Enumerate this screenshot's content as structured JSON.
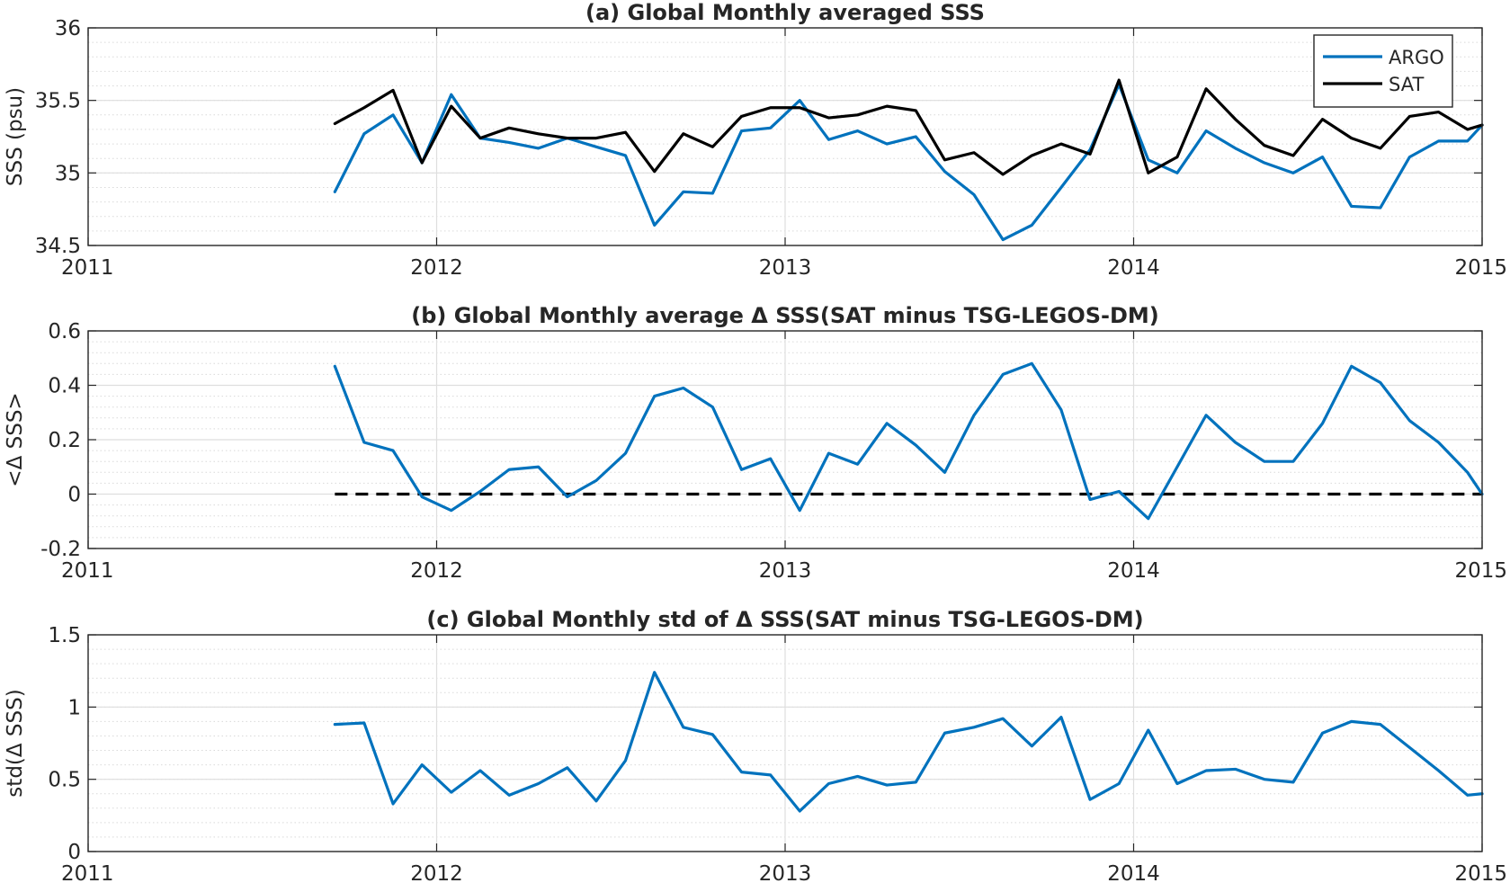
{
  "chart_data": [
    {
      "id": "a",
      "type": "line",
      "title": "(a) Global Monthly averaged SSS",
      "xlabel": "",
      "ylabel": "SSS (psu)",
      "xlim": [
        2011,
        2015
      ],
      "ylim": [
        34.5,
        36
      ],
      "x_ticks": [
        2011,
        2012,
        2013,
        2014,
        2015
      ],
      "x_tick_labels": [
        "2011",
        "2012",
        "2013",
        "2014",
        "2015"
      ],
      "y_ticks": [
        34.5,
        35,
        35.5,
        36
      ],
      "y_tick_labels": [
        "34.5",
        "35",
        "35.5",
        "36"
      ],
      "y_minor_step": 0.1,
      "grid": true,
      "legend": "top-right",
      "series": [
        {
          "name": "ARGO",
          "color": "#0072BD",
          "x": [
            2011.708,
            2011.792,
            2011.875,
            2011.958,
            2012.042,
            2012.125,
            2012.208,
            2012.292,
            2012.375,
            2012.458,
            2012.542,
            2012.625,
            2012.708,
            2012.792,
            2012.875,
            2012.958,
            2013.042,
            2013.125,
            2013.208,
            2013.292,
            2013.375,
            2013.458,
            2013.542,
            2013.625,
            2013.708,
            2013.792,
            2013.875,
            2013.958,
            2014.042,
            2014.125,
            2014.208,
            2014.292,
            2014.375,
            2014.458,
            2014.542,
            2014.625,
            2014.708,
            2014.792,
            2014.875,
            2014.958,
            2015.0
          ],
          "y": [
            34.87,
            35.27,
            35.4,
            35.07,
            35.54,
            35.24,
            35.21,
            35.17,
            35.24,
            35.18,
            35.12,
            34.64,
            34.87,
            34.86,
            35.29,
            35.31,
            35.5,
            35.23,
            35.29,
            35.2,
            35.25,
            35.01,
            34.85,
            34.54,
            34.64,
            34.9,
            35.16,
            35.61,
            35.09,
            35.0,
            35.29,
            35.17,
            35.07,
            35.0,
            35.11,
            34.77,
            34.76,
            35.11,
            35.22,
            35.22,
            35.33
          ]
        },
        {
          "name": "SAT",
          "color": "#000000",
          "x": [
            2011.708,
            2011.792,
            2011.875,
            2011.958,
            2012.042,
            2012.125,
            2012.208,
            2012.292,
            2012.375,
            2012.458,
            2012.542,
            2012.625,
            2012.708,
            2012.792,
            2012.875,
            2012.958,
            2013.042,
            2013.125,
            2013.208,
            2013.292,
            2013.375,
            2013.458,
            2013.542,
            2013.625,
            2013.708,
            2013.792,
            2013.875,
            2013.958,
            2014.042,
            2014.125,
            2014.208,
            2014.292,
            2014.375,
            2014.458,
            2014.542,
            2014.625,
            2014.708,
            2014.792,
            2014.875,
            2014.958,
            2015.0
          ],
          "y": [
            35.34,
            35.45,
            35.57,
            35.07,
            35.46,
            35.24,
            35.31,
            35.27,
            35.24,
            35.24,
            35.28,
            35.01,
            35.27,
            35.18,
            35.39,
            35.45,
            35.45,
            35.38,
            35.4,
            35.46,
            35.43,
            35.09,
            35.14,
            34.99,
            35.12,
            35.2,
            35.13,
            35.64,
            35.0,
            35.11,
            35.58,
            35.37,
            35.19,
            35.12,
            35.37,
            35.24,
            35.17,
            35.39,
            35.42,
            35.3,
            35.33
          ]
        }
      ]
    },
    {
      "id": "b",
      "type": "line",
      "title": "(b) Global Monthly average Δ SSS(SAT minus TSG-LEGOS-DM)",
      "xlabel": "",
      "ylabel": "<Δ SSS>",
      "xlim": [
        2011,
        2015
      ],
      "ylim": [
        -0.2,
        0.6
      ],
      "x_ticks": [
        2011,
        2012,
        2013,
        2014,
        2015
      ],
      "x_tick_labels": [
        "2011",
        "2012",
        "2013",
        "2014",
        "2015"
      ],
      "y_ticks": [
        -0.2,
        0,
        0.2,
        0.4,
        0.6
      ],
      "y_tick_labels": [
        "-0.2",
        "0",
        "0.2",
        "0.4",
        "0.6"
      ],
      "y_minor_step": 0.04,
      "grid": true,
      "reference_line": {
        "y": 0,
        "x_start": 2011.708,
        "x_end": 2015.0,
        "color": "#000000",
        "style": "dashed"
      },
      "series": [
        {
          "color": "#0072BD",
          "x": [
            2011.708,
            2011.792,
            2011.875,
            2011.958,
            2012.042,
            2012.125,
            2012.208,
            2012.292,
            2012.375,
            2012.458,
            2012.542,
            2012.625,
            2012.708,
            2012.792,
            2012.875,
            2012.958,
            2013.042,
            2013.125,
            2013.208,
            2013.292,
            2013.375,
            2013.458,
            2013.542,
            2013.625,
            2013.708,
            2013.792,
            2013.875,
            2013.958,
            2014.042,
            2014.125,
            2014.208,
            2014.292,
            2014.375,
            2014.458,
            2014.542,
            2014.625,
            2014.708,
            2014.792,
            2014.875,
            2014.958,
            2015.0
          ],
          "y": [
            0.47,
            0.19,
            0.16,
            -0.01,
            -0.06,
            0.01,
            0.09,
            0.1,
            -0.01,
            0.05,
            0.15,
            0.36,
            0.39,
            0.32,
            0.09,
            0.13,
            -0.06,
            0.15,
            0.11,
            0.26,
            0.18,
            0.08,
            0.29,
            0.44,
            0.48,
            0.31,
            -0.02,
            0.01,
            -0.09,
            0.1,
            0.29,
            0.19,
            0.12,
            0.12,
            0.26,
            0.47,
            0.41,
            0.27,
            0.19,
            0.08,
            0.0
          ]
        }
      ]
    },
    {
      "id": "c",
      "type": "line",
      "title": "(c) Global Monthly std of Δ SSS(SAT minus TSG-LEGOS-DM)",
      "xlabel": "",
      "ylabel": "std(Δ SSS)",
      "xlim": [
        2011,
        2015
      ],
      "ylim": [
        0,
        1.5
      ],
      "x_ticks": [
        2011,
        2012,
        2013,
        2014,
        2015
      ],
      "x_tick_labels": [
        "2011",
        "2012",
        "2013",
        "2014",
        "2015"
      ],
      "y_ticks": [
        0,
        0.5,
        1,
        1.5
      ],
      "y_tick_labels": [
        "0",
        "0.5",
        "1",
        "1.5"
      ],
      "y_minor_step": 0.1,
      "grid": true,
      "series": [
        {
          "color": "#0072BD",
          "x": [
            2011.708,
            2011.792,
            2011.875,
            2011.958,
            2012.042,
            2012.125,
            2012.208,
            2012.292,
            2012.375,
            2012.458,
            2012.542,
            2012.625,
            2012.708,
            2012.792,
            2012.875,
            2012.958,
            2013.042,
            2013.125,
            2013.208,
            2013.292,
            2013.375,
            2013.458,
            2013.542,
            2013.625,
            2013.708,
            2013.792,
            2013.875,
            2013.958,
            2014.042,
            2014.125,
            2014.208,
            2014.292,
            2014.375,
            2014.458,
            2014.542,
            2014.625,
            2014.708,
            2014.792,
            2014.875,
            2014.958,
            2015.0
          ],
          "y": [
            0.88,
            0.89,
            0.33,
            0.6,
            0.41,
            0.56,
            0.39,
            0.47,
            0.58,
            0.35,
            0.63,
            1.24,
            0.86,
            0.81,
            0.55,
            0.53,
            0.28,
            0.47,
            0.52,
            0.46,
            0.48,
            0.82,
            0.86,
            0.92,
            0.73,
            0.93,
            0.36,
            0.47,
            0.84,
            0.47,
            0.56,
            0.57,
            0.5,
            0.48,
            0.82,
            0.9,
            0.88,
            0.72,
            0.56,
            0.39,
            0.4
          ]
        }
      ]
    }
  ]
}
